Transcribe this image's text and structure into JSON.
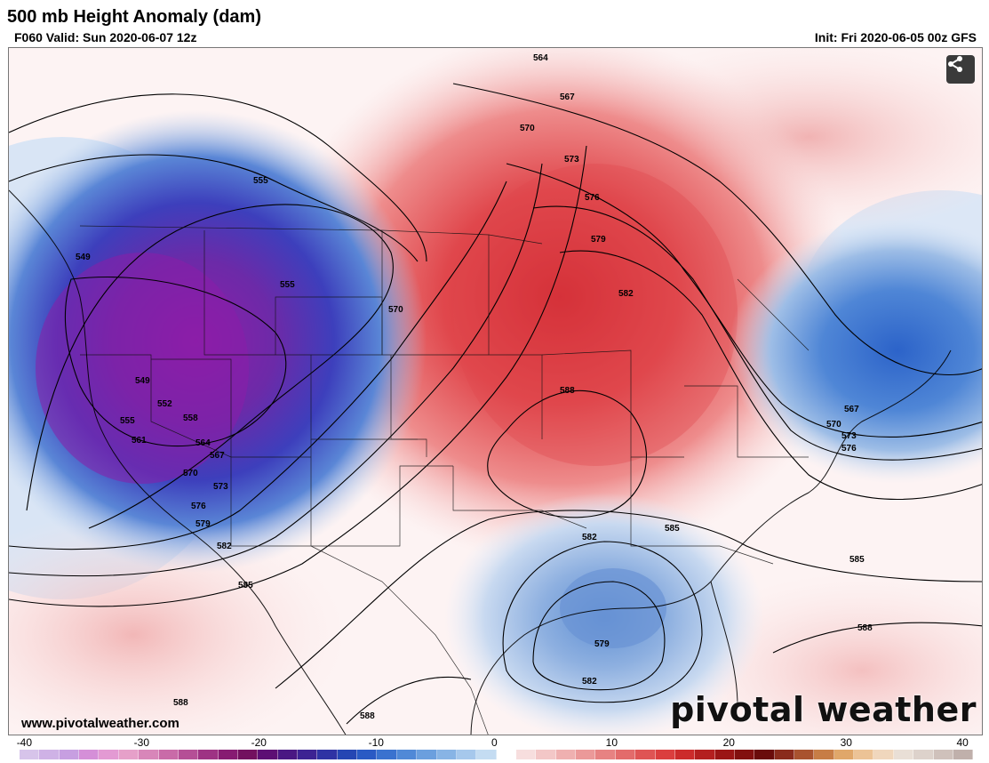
{
  "header": {
    "title": "500 mb Height Anomaly (dam)",
    "valid": "F060 Valid: Sun 2020-06-07 12z",
    "init": "Init: Fri 2020-06-05 00z GFS"
  },
  "map": {
    "contour_labels": [
      "564",
      "567",
      "570",
      "573",
      "576",
      "579",
      "582",
      "588",
      "549",
      "555",
      "555",
      "570",
      "549",
      "552",
      "555",
      "558",
      "561",
      "564",
      "567",
      "570",
      "573",
      "576",
      "579",
      "582",
      "585",
      "567",
      "570",
      "573",
      "576",
      "585",
      "582",
      "579",
      "582",
      "585",
      "588",
      "588",
      "588"
    ],
    "anomaly_colors": {
      "strong_negative": "#7b1fa2",
      "negative": "#2f5fd0",
      "weak_negative": "#c7d7ee",
      "neutral": "#ffffff",
      "weak_positive": "#f6d0d0",
      "positive": "#e0474c",
      "strong_positive": "#c8232e"
    }
  },
  "watermark": {
    "website": "www.pivotalweather.com",
    "logo": "pivotal weather"
  },
  "share_button": {
    "icon": "share-icon"
  },
  "colorbar": {
    "ticks": [
      "-40",
      "-30",
      "-20",
      "-10",
      "0",
      "10",
      "20",
      "30",
      "40"
    ],
    "colors": [
      "#d7c4ea",
      "#cfb2e6",
      "#c79fe1",
      "#d58fd8",
      "#e39ad3",
      "#e6a0c9",
      "#d886b9",
      "#c96ba8",
      "#b54f96",
      "#9e3384",
      "#871b72",
      "#73115f",
      "#5d0f74",
      "#4a1883",
      "#3d2393",
      "#2f33a4",
      "#2546b3",
      "#2a5ac4",
      "#3a72cf",
      "#5089d7",
      "#6b9fde",
      "#88b4e5",
      "#a6c8ec",
      "#c4dcf2",
      "#ffffff",
      "#f7dede",
      "#f3c7c7",
      "#efb0b0",
      "#eb9999",
      "#e78282",
      "#e36b6b",
      "#df5454",
      "#db3e3e",
      "#cc2b2b",
      "#b41f1f",
      "#9b1515",
      "#82100f",
      "#6a0c0b",
      "#8a2b1c",
      "#a9532f",
      "#c77d46",
      "#e0a76a",
      "#ecc396",
      "#f0d7bd",
      "#e9dfd6",
      "#ddd2cb",
      "#cfc1bb",
      "#c0b0ab"
    ]
  }
}
